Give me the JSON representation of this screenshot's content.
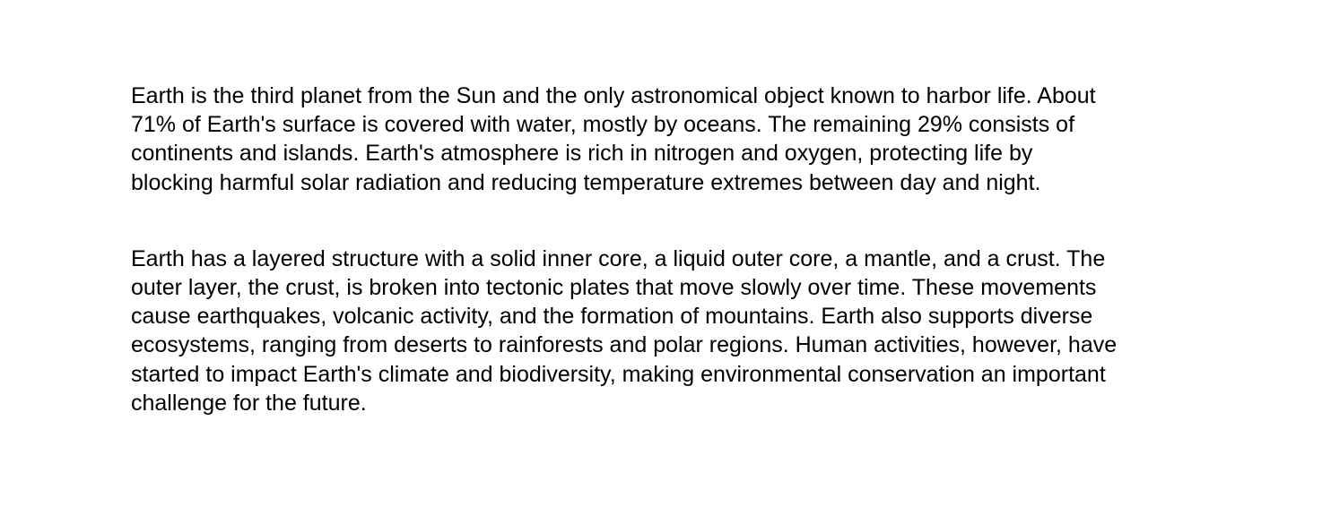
{
  "document": {
    "paragraphs": [
      {
        "lines": [
          "Earth is the third planet from the Sun and the only astronomical object known to harbor life. About",
          "71% of Earth's surface is covered with water, mostly by oceans. The remaining 29% consists of",
          "continents and islands. Earth's atmosphere is rich in nitrogen and oxygen, protecting life by",
          "blocking harmful solar radiation and reducing temperature extremes between day and night."
        ]
      },
      {
        "lines": [
          "Earth has a layered structure with a solid inner core, a liquid outer core, a mantle, and a crust. The",
          "outer layer, the crust, is broken into tectonic plates that move slowly over time. These movements",
          "cause earthquakes, volcanic activity, and the formation of mountains. Earth also supports diverse",
          "ecosystems, ranging from deserts to rainforests and polar regions. Human activities, however, have",
          "started to impact Earth's climate and biodiversity, making environmental conservation an important",
          "challenge for the future."
        ]
      }
    ]
  }
}
